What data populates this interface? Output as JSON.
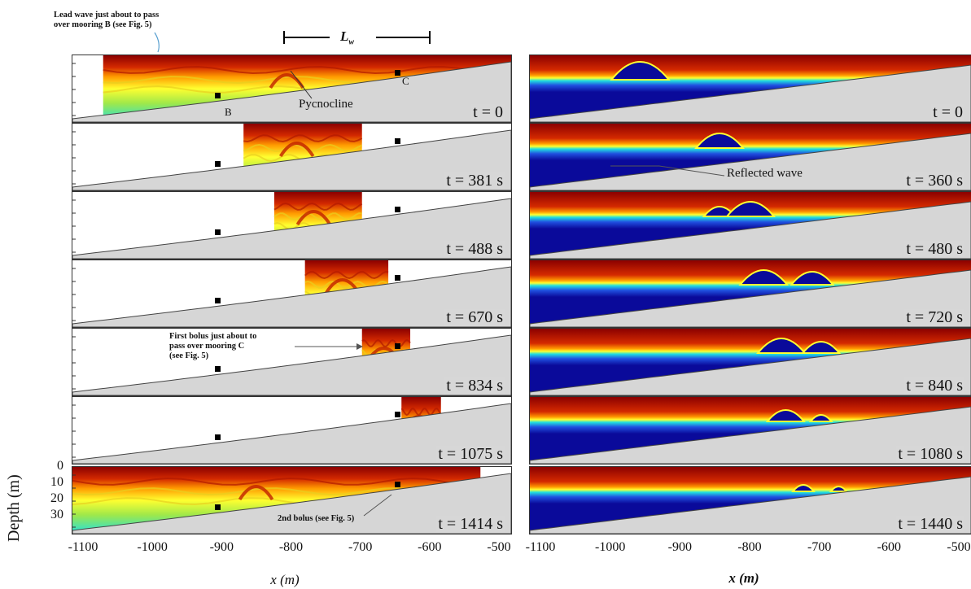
{
  "figure": {
    "left_column": {
      "panels": [
        {
          "time": "t = 0"
        },
        {
          "time": "t = 381 s"
        },
        {
          "time": "t = 488 s"
        },
        {
          "time": "t = 670 s"
        },
        {
          "time": "t = 834 s"
        },
        {
          "time": "t = 1075 s"
        },
        {
          "time": "t = 1414 s"
        }
      ],
      "x_ticks": [
        "-1100",
        "-1000",
        "-900",
        "-800",
        "-700",
        "-600",
        "-500"
      ],
      "x_label": "x (m)"
    },
    "right_column": {
      "panels": [
        {
          "time": "t = 0"
        },
        {
          "time": "t = 360 s"
        },
        {
          "time": "t = 480 s"
        },
        {
          "time": "t = 720 s"
        },
        {
          "time": "t = 840 s"
        },
        {
          "time": "t = 1080 s"
        },
        {
          "time": "t = 1440 s"
        }
      ],
      "x_ticks": [
        "-1100",
        "-1000",
        "-900",
        "-800",
        "-700",
        "-600",
        "-500"
      ],
      "x_label": "x (m)"
    },
    "y_axis": {
      "label": "Depth (m)",
      "ticks": [
        "0",
        "10",
        "20",
        "30"
      ]
    },
    "annotations": {
      "lead_wave_line1": "Lead wave just about to pass",
      "lead_wave_line2": "over mooring B (see Fig. 5)",
      "lw_symbol": "L",
      "lw_subscript": "w",
      "pycnocline": "Pycnocline",
      "mooring_b": "B",
      "mooring_c": "C",
      "first_bolus_line1": "First bolus just about to",
      "first_bolus_line2": "pass over mooring C",
      "first_bolus_line3": "(see Fig. 5)",
      "second_bolus": "2nd bolus (see Fig. 5)",
      "reflected_wave": "Reflected wave"
    },
    "colors": {
      "dark_red": "#8b0000",
      "red": "#d42a00",
      "orange": "#ff9a00",
      "yellow": "#ffff30",
      "cyan": "#20e0e0",
      "deep_blue": "#0a0a9a",
      "seabed_gray": "#d6d6d6"
    }
  }
}
